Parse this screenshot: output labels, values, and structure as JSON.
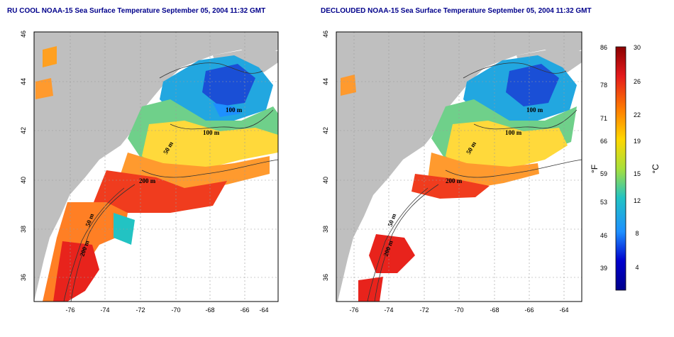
{
  "panels": [
    {
      "title": "RU COOL NOAA-15 Sea Surface Temperature September 05, 2004 11:32 GMT",
      "contour_labels": [
        "100 m",
        "100 m",
        "50 m",
        "200 m",
        "50 m",
        "200 m"
      ]
    },
    {
      "title": "DECLOUDED NOAA-15 Sea Surface Temperature September 05, 2004 11:32 GMT",
      "contour_labels": [
        "100 m",
        "100 m",
        "50 m",
        "200 m",
        "50 m",
        "200 m"
      ]
    }
  ],
  "axes": {
    "x_ticks": [
      "-76",
      "-74",
      "-72",
      "-70",
      "-68",
      "-66",
      "-64"
    ],
    "y_ticks": [
      "36",
      "38",
      "40",
      "42",
      "44",
      "46"
    ],
    "x_range": [
      -77.2,
      -63.0
    ],
    "y_range": [
      35.0,
      46.0
    ]
  },
  "colorbar": {
    "fahrenheit_ticks": [
      "86",
      "78",
      "71",
      "66",
      "59",
      "53",
      "46",
      "39"
    ],
    "celsius_ticks": [
      "30",
      "26",
      "22",
      "19",
      "15",
      "12",
      "8",
      "4"
    ],
    "fahrenheit_unit": "°F",
    "celsius_unit": "°C",
    "colors": [
      "#8b0000",
      "#e41a1c",
      "#ff7f00",
      "#ffd700",
      "#a8e03b",
      "#22c3c3",
      "#1e90ff",
      "#0000cd",
      "#00008b"
    ]
  },
  "colors": {
    "land": "#bfbfbf",
    "grid": "#808080"
  }
}
